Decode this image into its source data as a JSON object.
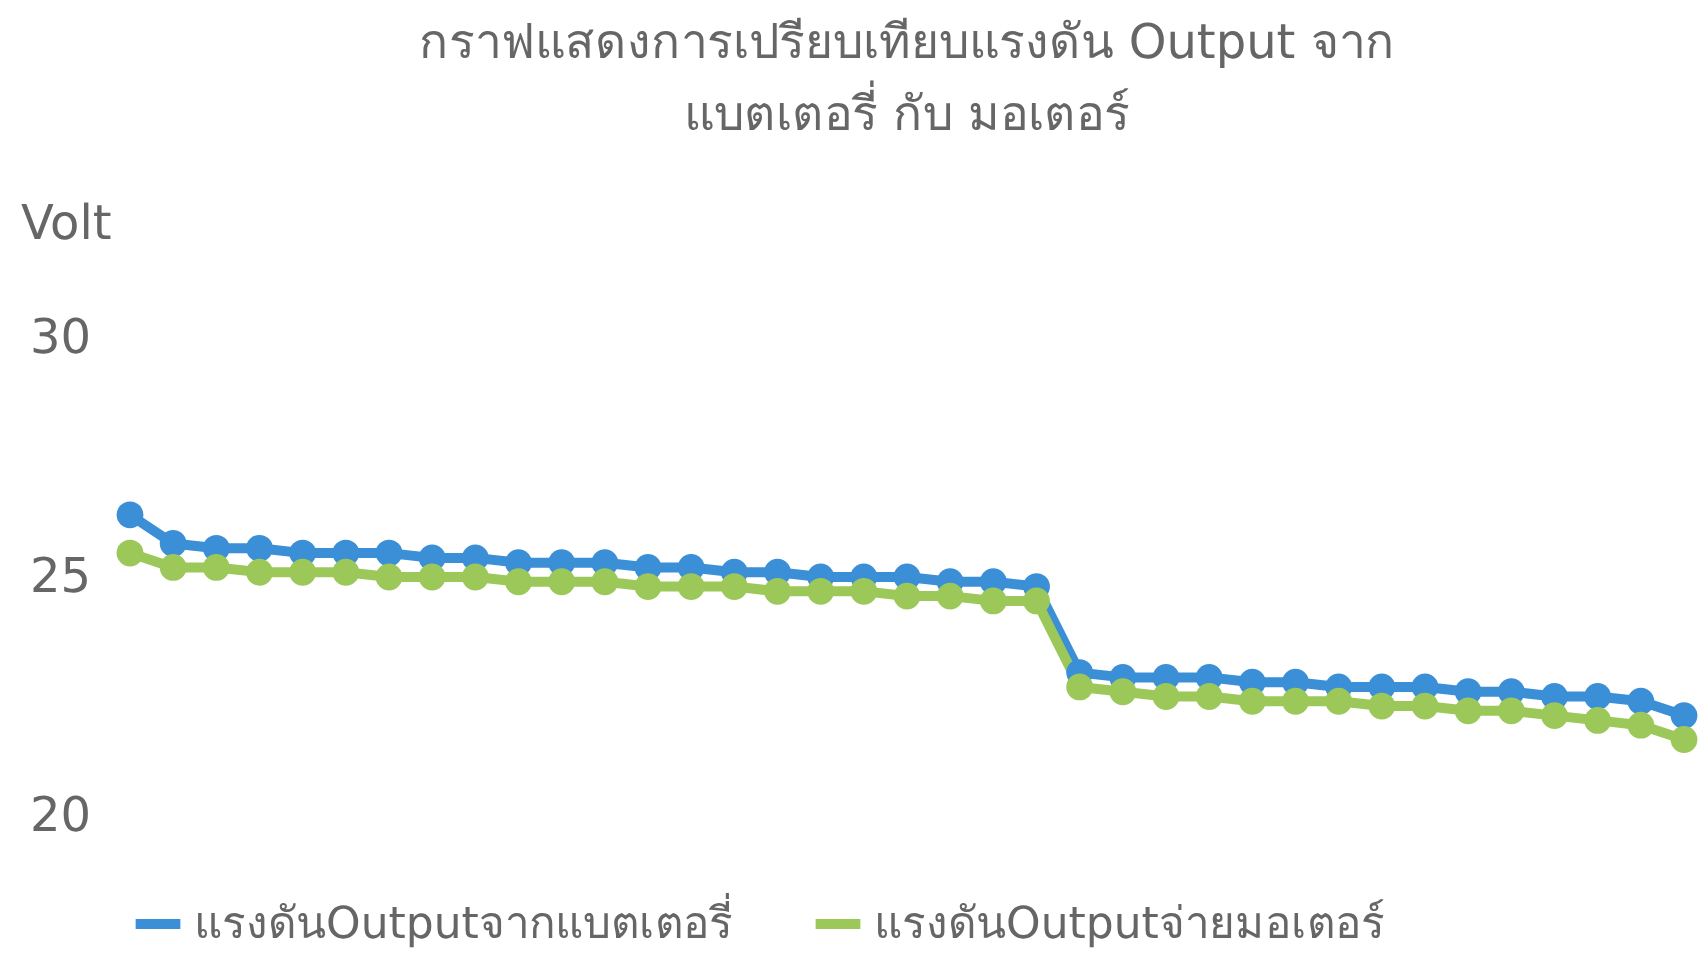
{
  "chart_data": {
    "type": "line",
    "title": "กราฟแสดงการเปรียบเทียบแรงดัน Output จาก\nแบตเตอรี่ กับ มอเตอร์",
    "ylabel": "Volt",
    "categories": [
      null,
      null,
      null,
      null,
      null,
      null,
      null,
      null,
      null,
      null,
      null,
      null,
      null,
      null,
      null,
      null,
      null,
      null,
      null,
      null,
      null,
      null,
      null,
      null,
      null,
      null,
      null,
      null,
      null,
      null,
      null,
      null,
      null,
      null,
      null,
      null,
      null
    ],
    "series": [
      {
        "name": "แรงดันOutputจากแบตเตอรี่",
        "color": "#3a8fd6",
        "values": [
          26.3,
          25.7,
          25.6,
          25.6,
          25.5,
          25.5,
          25.5,
          25.4,
          25.4,
          25.3,
          25.3,
          25.3,
          25.2,
          25.2,
          25.1,
          25.1,
          25.0,
          25.0,
          25.0,
          24.9,
          24.9,
          24.8,
          23.0,
          22.9,
          22.9,
          22.9,
          22.8,
          22.8,
          22.7,
          22.7,
          22.7,
          22.6,
          22.6,
          22.5,
          22.5,
          22.4,
          22.1
        ]
      },
      {
        "name": "แรงดันOutputจ่ายมอเตอร์",
        "color": "#9cc85a",
        "values": [
          25.5,
          25.2,
          25.2,
          25.1,
          25.1,
          25.1,
          25.0,
          25.0,
          25.0,
          24.9,
          24.9,
          24.9,
          24.8,
          24.8,
          24.8,
          24.7,
          24.7,
          24.7,
          24.6,
          24.6,
          24.5,
          24.5,
          22.7,
          22.6,
          22.5,
          22.5,
          22.4,
          22.4,
          22.4,
          22.3,
          22.3,
          22.2,
          22.2,
          22.1,
          22.0,
          21.9,
          21.6
        ]
      }
    ],
    "ylim": [
      20,
      30
    ],
    "yticks": [
      20,
      25,
      30
    ],
    "grid": false,
    "legend": "bottom",
    "marker": "circle",
    "line_style": "solid",
    "tick_labels": "y"
  }
}
